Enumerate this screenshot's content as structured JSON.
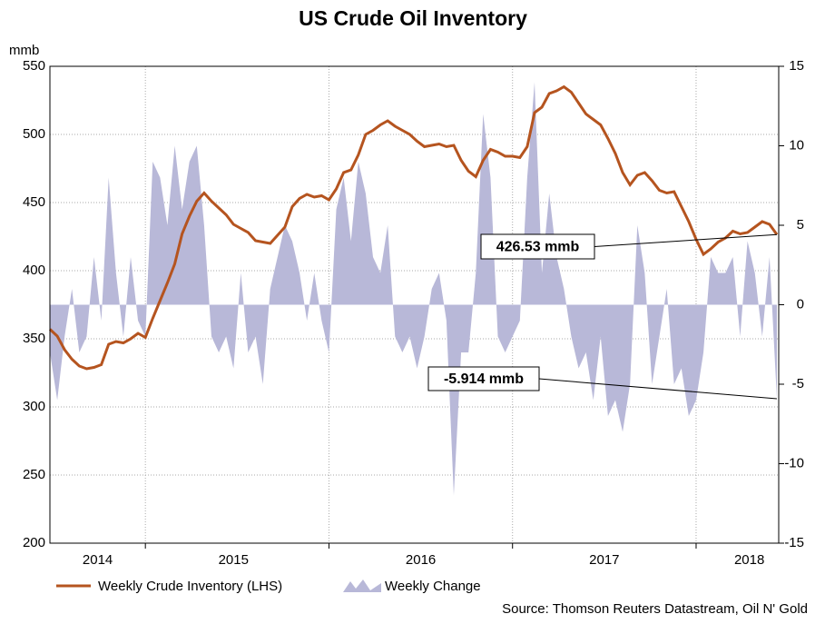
{
  "chart_data": {
    "type": "line",
    "title": "US Crude Oil Inventory",
    "y_label": "mmb",
    "source": "Source: Thomson Reuters Datastream, Oil N' Gold",
    "xlim": [
      2014.48,
      2018.45
    ],
    "xgrid": [
      2015,
      2016,
      2017,
      2018
    ],
    "xticks": [
      {
        "value": 2014.74,
        "label": "2014"
      },
      {
        "value": 2015.48,
        "label": "2015"
      },
      {
        "value": 2016.5,
        "label": "2016"
      },
      {
        "value": 2017.5,
        "label": "2017"
      },
      {
        "value": 2018.29,
        "label": "2018"
      }
    ],
    "ylim": [
      200,
      550
    ],
    "yticks": [
      200,
      250,
      300,
      350,
      400,
      450,
      500,
      550
    ],
    "y2lim": [
      -15,
      15
    ],
    "y2ticks": [
      -15,
      -10,
      -5,
      0,
      5,
      10,
      15
    ],
    "grid": true,
    "x": [
      2014.48,
      2014.52,
      2014.56,
      2014.6,
      2014.64,
      2014.68,
      2014.72,
      2014.76,
      2014.8,
      2014.84,
      2014.88,
      2014.92,
      2014.96,
      2015.0,
      2015.04,
      2015.08,
      2015.12,
      2015.16,
      2015.2,
      2015.24,
      2015.28,
      2015.32,
      2015.36,
      2015.4,
      2015.44,
      2015.48,
      2015.52,
      2015.56,
      2015.6,
      2015.64,
      2015.68,
      2015.72,
      2015.76,
      2015.8,
      2015.84,
      2015.88,
      2015.92,
      2015.96,
      2016.0,
      2016.04,
      2016.08,
      2016.12,
      2016.16,
      2016.2,
      2016.24,
      2016.28,
      2016.32,
      2016.36,
      2016.4,
      2016.44,
      2016.48,
      2016.52,
      2016.56,
      2016.6,
      2016.64,
      2016.68,
      2016.72,
      2016.76,
      2016.8,
      2016.84,
      2016.88,
      2016.92,
      2016.96,
      2017.0,
      2017.04,
      2017.08,
      2017.12,
      2017.16,
      2017.2,
      2017.24,
      2017.28,
      2017.32,
      2017.36,
      2017.4,
      2017.44,
      2017.48,
      2017.52,
      2017.56,
      2017.6,
      2017.64,
      2017.68,
      2017.72,
      2017.76,
      2017.8,
      2017.84,
      2017.88,
      2017.92,
      2017.96,
      2018.0,
      2018.04,
      2018.08,
      2018.12,
      2018.16,
      2018.2,
      2018.24,
      2018.28,
      2018.32,
      2018.36,
      2018.4,
      2018.44
    ],
    "series": [
      {
        "name": "Weekly Crude Inventory (LHS)",
        "color": "#b5541f",
        "axis": "y",
        "values": [
          357,
          352,
          342,
          335,
          330,
          328,
          329,
          331,
          346,
          348,
          347,
          350,
          354,
          351,
          365,
          378,
          391,
          405,
          427,
          440,
          451,
          457,
          451,
          446,
          441,
          434,
          431,
          428,
          422,
          421,
          420,
          426,
          432,
          447,
          453,
          456,
          454,
          455,
          452,
          460,
          472,
          474,
          485,
          500,
          503,
          507,
          510,
          506,
          503,
          500,
          495,
          491,
          492,
          493,
          491,
          492,
          481,
          473,
          469,
          481,
          489,
          487,
          484,
          484,
          483,
          491,
          516,
          520,
          530,
          532,
          535,
          531,
          523,
          515,
          511,
          507,
          497,
          486,
          472,
          463,
          470,
          472,
          466,
          459,
          457,
          458,
          447,
          436,
          423,
          412,
          416,
          421,
          424,
          429,
          427,
          428,
          432,
          436,
          434,
          426.53
        ]
      },
      {
        "name": "Weekly Change",
        "color": "#b8b8d8",
        "axis": "y2",
        "type": "area",
        "values": [
          -3,
          -6,
          -2,
          1,
          -3,
          -2,
          3,
          -1,
          8,
          2,
          -2,
          3,
          -1,
          -2,
          9,
          8,
          5,
          10,
          6,
          9,
          10,
          5,
          -2,
          -3,
          -2,
          -4,
          2,
          -3,
          -2,
          -5,
          1,
          3,
          5,
          4,
          2,
          -1,
          2,
          -1,
          -3,
          6,
          8,
          4,
          9,
          7,
          3,
          2,
          5,
          -2,
          -3,
          -2,
          -4,
          -2,
          1,
          2,
          -1,
          -12,
          -3,
          -3,
          2,
          12,
          8,
          -2,
          -3,
          -2,
          -1,
          8,
          14,
          2,
          7,
          3,
          1,
          -2,
          -4,
          -3,
          -6,
          -2,
          -7,
          -6,
          -8,
          -5,
          5,
          2,
          -5,
          -2,
          1,
          -5,
          -4,
          -7,
          -6,
          -3,
          3,
          2,
          2,
          3,
          -2,
          4,
          2,
          -2,
          3,
          -5.914
        ]
      }
    ],
    "annotations": [
      "426.53 mmb",
      "-5.914 mmb"
    ]
  }
}
